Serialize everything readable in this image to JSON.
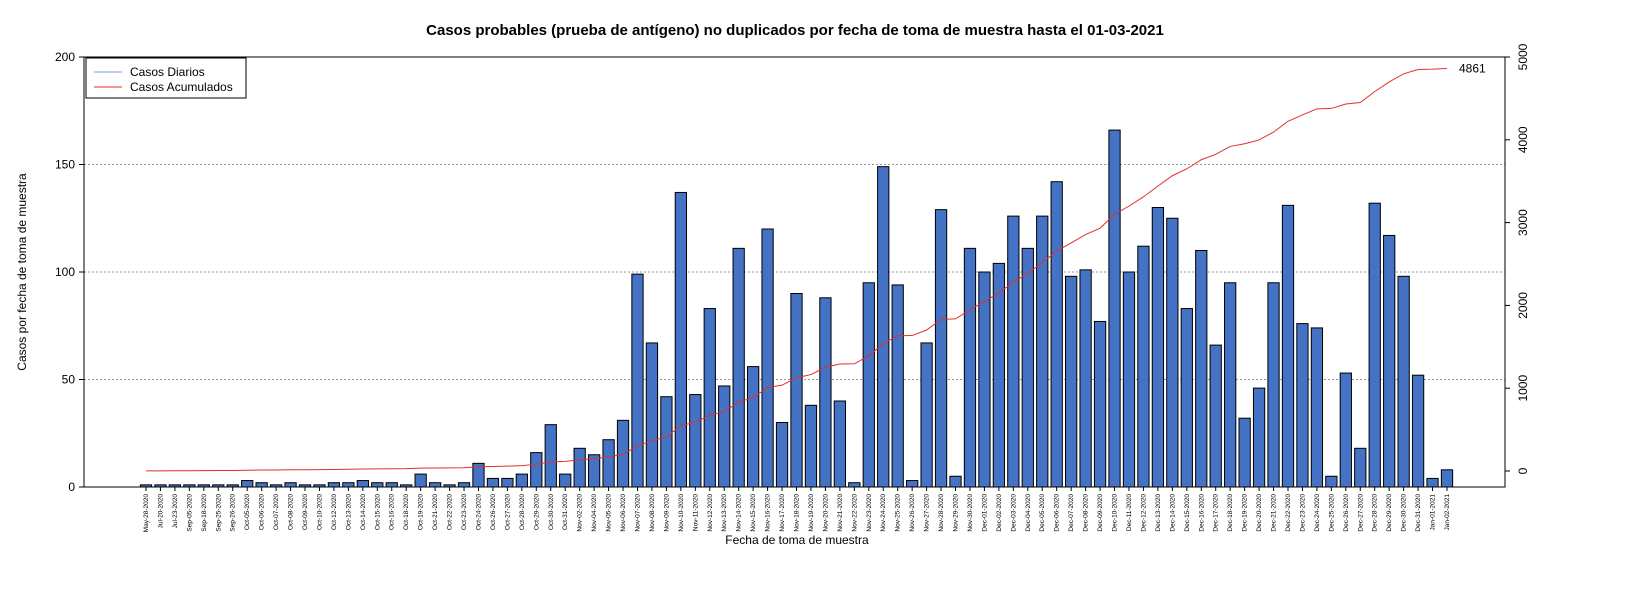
{
  "chart_data": {
    "type": "bar",
    "title": "Casos probables (prueba de antígeno) no duplicados por fecha de toma de muestra hasta el 01-03-2021",
    "x_label": "Fecha de toma de muestra",
    "y_label": "Casos por fecha de toma de muestra",
    "categories": [
      "May-28-2020",
      "Jul-20-2020",
      "Jul-23-2020",
      "Sep-05-2020",
      "Sep-18-2020",
      "Sep-25-2020",
      "Sep-26-2020",
      "Oct-05-2020",
      "Oct-06-2020",
      "Oct-07-2020",
      "Oct-08-2020",
      "Oct-09-2020",
      "Oct-10-2020",
      "Oct-12-2020",
      "Oct-13-2020",
      "Oct-14-2020",
      "Oct-15-2020",
      "Oct-16-2020",
      "Oct-18-2020",
      "Oct-19-2020",
      "Oct-21-2020",
      "Oct-22-2020",
      "Oct-23-2020",
      "Oct-24-2020",
      "Oct-26-2020",
      "Oct-27-2020",
      "Oct-28-2020",
      "Oct-29-2020",
      "Oct-30-2020",
      "Oct-31-2020",
      "Nov-02-2020",
      "Nov-04-2020",
      "Nov-05-2020",
      "Nov-06-2020",
      "Nov-07-2020",
      "Nov-08-2020",
      "Nov-09-2020",
      "Nov-10-2020",
      "Nov-11-2020",
      "Nov-12-2020",
      "Nov-13-2020",
      "Nov-14-2020",
      "Nov-15-2020",
      "Nov-16-2020",
      "Nov-17-2020",
      "Nov-18-2020",
      "Nov-19-2020",
      "Nov-20-2020",
      "Nov-21-2020",
      "Nov-22-2020",
      "Nov-23-2020",
      "Nov-24-2020",
      "Nov-25-2020",
      "Nov-26-2020",
      "Nov-27-2020",
      "Nov-28-2020",
      "Nov-29-2020",
      "Nov-30-2020",
      "Dec-01-2020",
      "Dec-02-2020",
      "Dec-03-2020",
      "Dec-04-2020",
      "Dec-05-2020",
      "Dec-06-2020",
      "Dec-07-2020",
      "Dec-08-2020",
      "Dec-09-2020",
      "Dec-10-2020",
      "Dec-11-2020",
      "Dec-12-2020",
      "Dec-13-2020",
      "Dec-14-2020",
      "Dec-15-2020",
      "Dec-16-2020",
      "Dec-17-2020",
      "Dec-18-2020",
      "Dec-19-2020",
      "Dec-20-2020",
      "Dec-21-2020",
      "Dec-22-2020",
      "Dec-23-2020",
      "Dec-24-2020",
      "Dec-25-2020",
      "Dec-26-2020",
      "Dec-27-2020",
      "Dec-28-2020",
      "Dec-29-2020",
      "Dec-30-2020",
      "Dec-31-2020",
      "Jan-01-2021",
      "Jan-02-2021"
    ],
    "series": [
      {
        "name": "Casos Diarios",
        "color": "#4472c4",
        "values": [
          1,
          1,
          1,
          1,
          1,
          1,
          1,
          3,
          2,
          1,
          2,
          1,
          1,
          2,
          2,
          3,
          2,
          2,
          1,
          6,
          2,
          1,
          2,
          11,
          4,
          4,
          6,
          16,
          29,
          6,
          18,
          15,
          22,
          31,
          99,
          67,
          42,
          137,
          43,
          83,
          47,
          111,
          56,
          120,
          30,
          90,
          38,
          88,
          40,
          2,
          95,
          149,
          94,
          3,
          67,
          129,
          5,
          111,
          100,
          104,
          126,
          111,
          126,
          142,
          98,
          101,
          77,
          166,
          100,
          112,
          130,
          125,
          83,
          110,
          66,
          95,
          32,
          46,
          95,
          131,
          76,
          74,
          5,
          53,
          18,
          132,
          117,
          98,
          52,
          4,
          8
        ]
      },
      {
        "name": "Casos Acumulados",
        "color": "#e0302f",
        "axis": "y2",
        "values": [
          1,
          2,
          3,
          4,
          5,
          6,
          7,
          10,
          12,
          13,
          15,
          16,
          17,
          19,
          21,
          24,
          26,
          28,
          29,
          35,
          37,
          38,
          40,
          51,
          55,
          59,
          65,
          81,
          110,
          116,
          134,
          149,
          171,
          202,
          301,
          368,
          410,
          547,
          590,
          673,
          720,
          831,
          887,
          1007,
          1037,
          1127,
          1165,
          1253,
          1293,
          1295,
          1390,
          1539,
          1633,
          1636,
          1703,
          1832,
          1837,
          1948,
          2048,
          2152,
          2278,
          2389,
          2515,
          2657,
          2755,
          2856,
          2933,
          3099,
          3199,
          3311,
          3441,
          3566,
          3649,
          3759,
          3825,
          3920,
          3952,
          3998,
          4093,
          4224,
          4300,
          4374,
          4379,
          4432,
          4450,
          4582,
          4699,
          4797,
          4849,
          4853,
          4861
        ]
      }
    ],
    "ylim": [
      0,
      200
    ],
    "yticks": [
      0,
      50,
      100,
      150,
      200
    ],
    "y2lim": [
      -193,
      5000
    ],
    "y2ticks": [
      0,
      1000,
      2000,
      3000,
      4000,
      5000
    ],
    "grid": true,
    "legend": "top-left"
  }
}
